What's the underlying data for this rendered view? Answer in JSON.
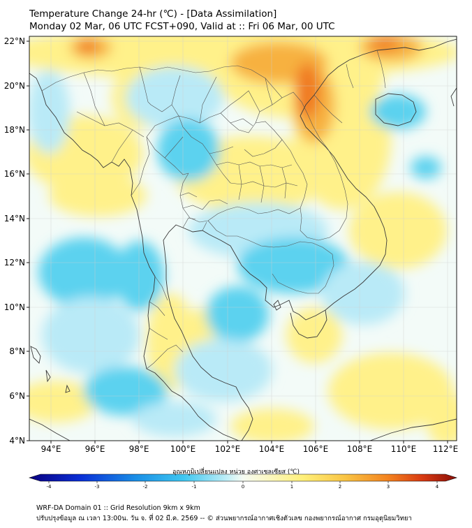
{
  "title": {
    "line1": "Temperature Change 24-hr (℃) - [Data Assimilation]",
    "line2": "Monday 02 Mar, 06 UTC FCST+090, Valid at :: Fri 06 Mar, 00 UTC"
  },
  "axes": {
    "lat_labels": [
      "22°N",
      "20°N",
      "18°N",
      "16°N",
      "14°N",
      "12°N",
      "10°N",
      "8°N",
      "6°N",
      "4°N"
    ],
    "lon_labels": [
      "94°E",
      "96°E",
      "98°E",
      "100°E",
      "102°E",
      "104°E",
      "106°E",
      "108°E",
      "110°E",
      "112°E"
    ]
  },
  "colorbar": {
    "label": "อุณหภูมิเปลี่ยนแปลง หน่วย องศาเซลเซียส (℃)",
    "min": -4,
    "max": 4,
    "tick_labels": [
      "-4",
      "-3",
      "-2",
      "-1",
      "0",
      "1",
      "2",
      "3",
      "4"
    ]
  },
  "footer": {
    "line1": "WRF-DA Domain 01 :: Grid Resolution 9km x 9km",
    "line2": "ปรับปรุงข้อมูล ณ เวลา 13:00น. วัน จ. ที่ 02 มี.ค. 2569 -- © ส่วนพยากรณ์อากาศเชิงตัวเลข กองพยากรณ์อากาศ กรมอุตุนิยมวิทยา"
  },
  "colors": {
    "field_base": "#f3fbf8",
    "cold": "#5cd2ef",
    "cold_light": "#b9eaf7",
    "warm": "#fff18a",
    "hot": "#f7b13f",
    "very_hot": "#f07a22",
    "coast": "#3a3a3a",
    "border": "#555555",
    "grid": "#cfcfcf"
  }
}
